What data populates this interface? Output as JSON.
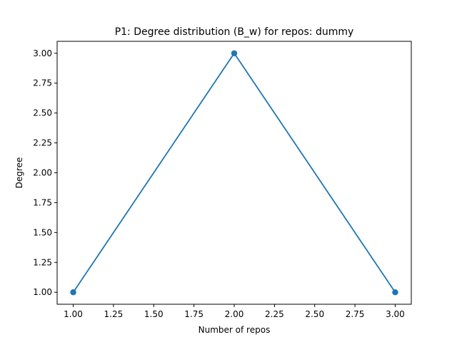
{
  "chart_data": {
    "type": "line",
    "title": "P1: Degree distribution (B_w) for repos: dummy",
    "xlabel": "Number of repos",
    "ylabel": "Degree",
    "x": [
      1,
      2,
      3
    ],
    "series": [
      {
        "values": [
          1,
          3,
          1
        ],
        "color": "#1f77b4",
        "marker": "circle"
      }
    ],
    "xlim": [
      0.9,
      3.1
    ],
    "ylim": [
      0.9,
      3.1
    ],
    "xticks": [
      1.0,
      1.25,
      1.5,
      1.75,
      2.0,
      2.25,
      2.5,
      2.75,
      3.0
    ],
    "xtick_labels": [
      "1.00",
      "1.25",
      "1.50",
      "1.75",
      "2.00",
      "2.25",
      "2.50",
      "2.75",
      "3.00"
    ],
    "yticks": [
      1.0,
      1.25,
      1.5,
      1.75,
      2.0,
      2.25,
      2.5,
      2.75,
      3.0
    ],
    "ytick_labels": [
      "1.00",
      "1.25",
      "1.50",
      "1.75",
      "2.00",
      "2.25",
      "2.50",
      "2.75",
      "3.00"
    ],
    "grid": false,
    "legend": "none"
  }
}
